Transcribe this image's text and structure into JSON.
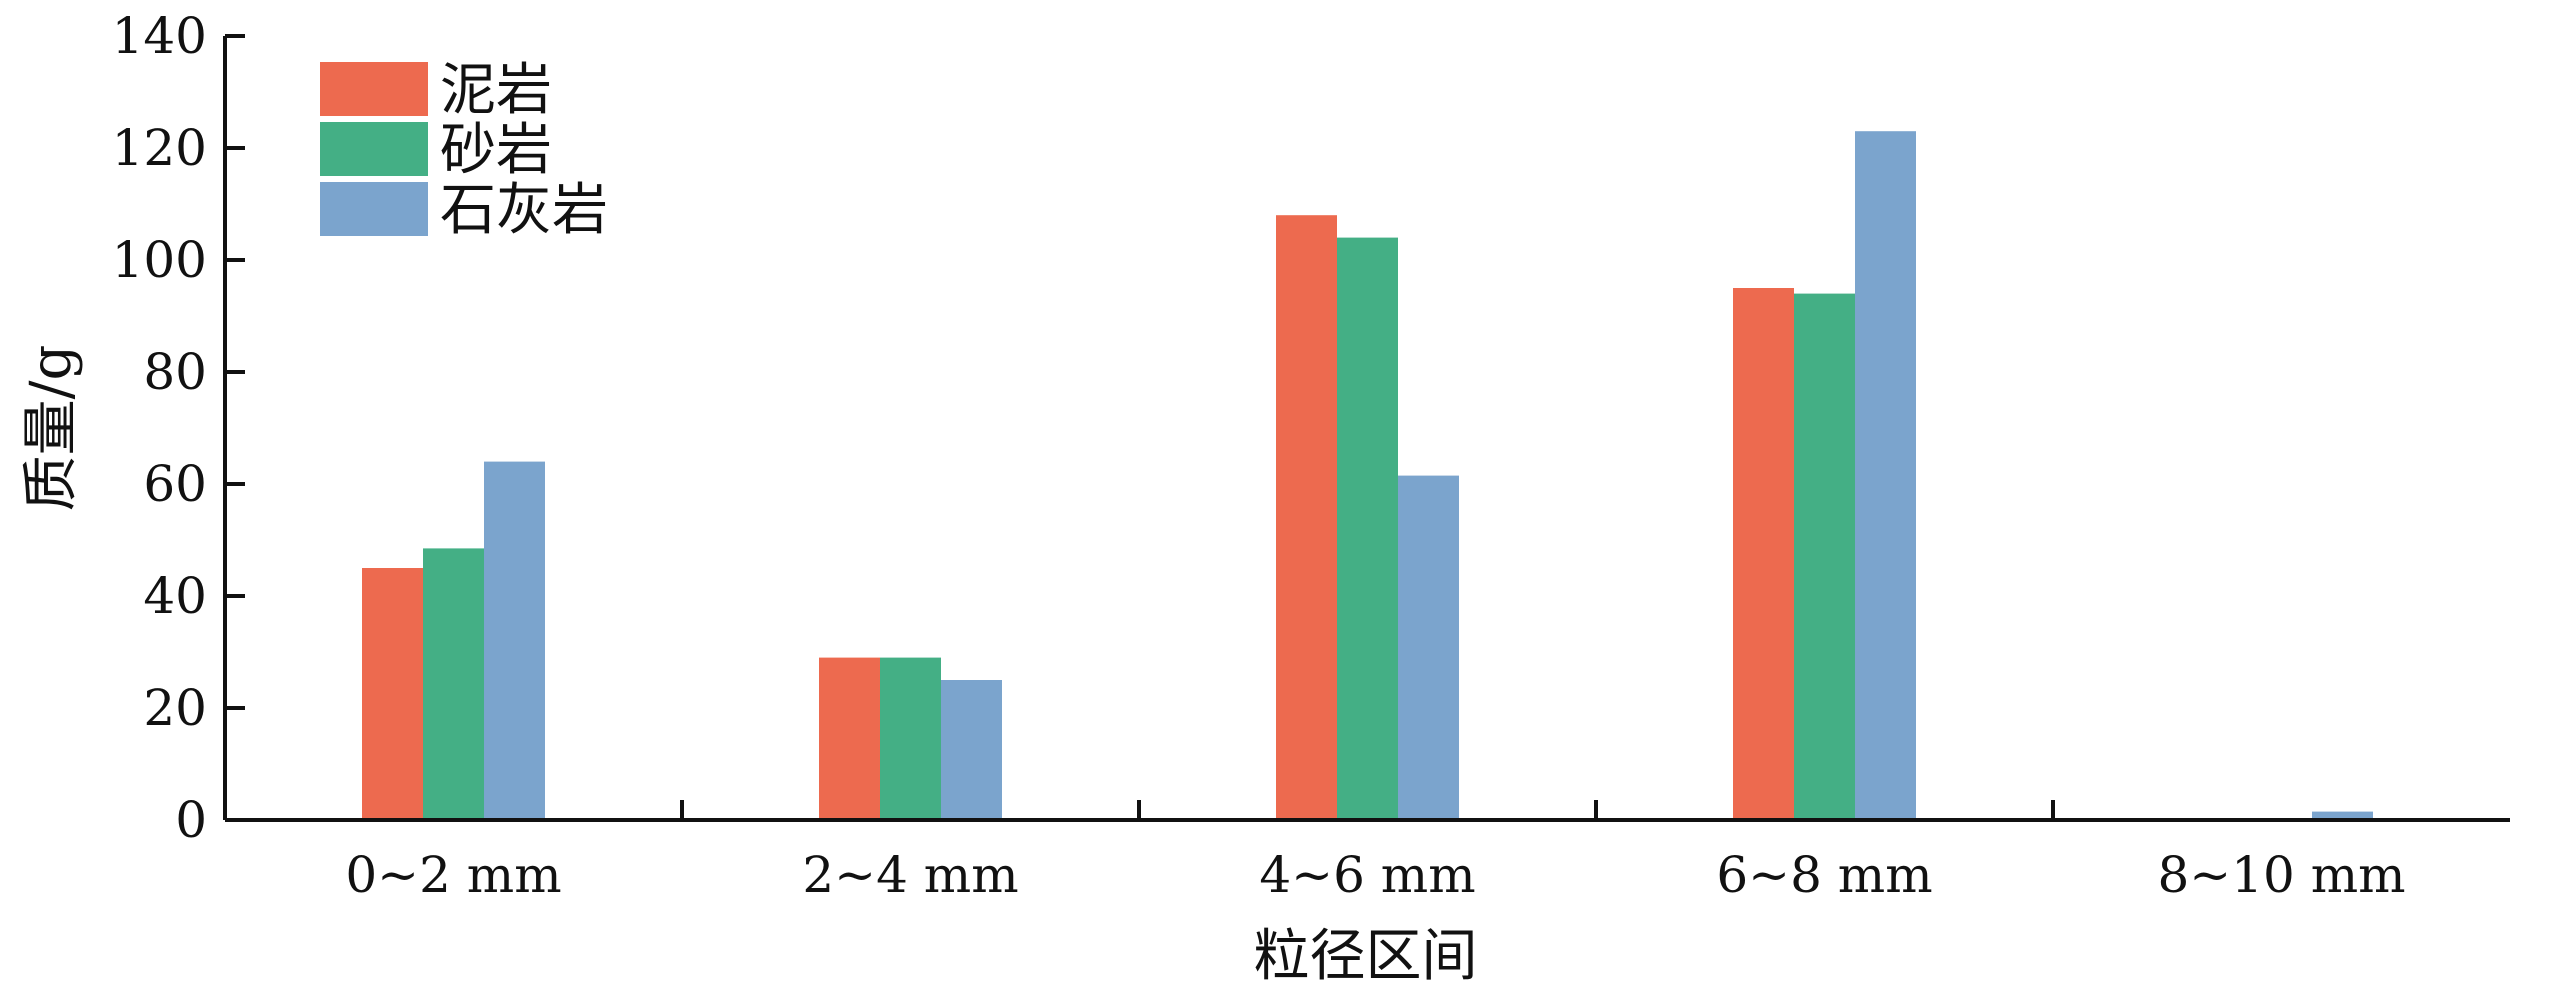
{
  "chart_data": {
    "type": "bar",
    "categories": [
      "0~2 mm",
      "2~4 mm",
      "4~6 mm",
      "6~8 mm",
      "8~10 mm"
    ],
    "series": [
      {
        "name": "泥岩",
        "color": "#ED6A4F",
        "values": [
          45,
          29,
          108,
          95,
          0
        ]
      },
      {
        "name": "砂岩",
        "color": "#44AF85",
        "values": [
          48.5,
          29,
          104,
          94,
          0
        ]
      },
      {
        "name": "石灰岩",
        "color": "#7BA4CD",
        "values": [
          64,
          25,
          61.5,
          123,
          1.5
        ]
      }
    ],
    "xlabel": "粒径区间",
    "ylabel": "质量/g",
    "ylim": [
      0,
      140
    ],
    "yticks": [
      0,
      20,
      40,
      60,
      80,
      100,
      120,
      140
    ],
    "grid": false,
    "legend_position": "top-left"
  }
}
